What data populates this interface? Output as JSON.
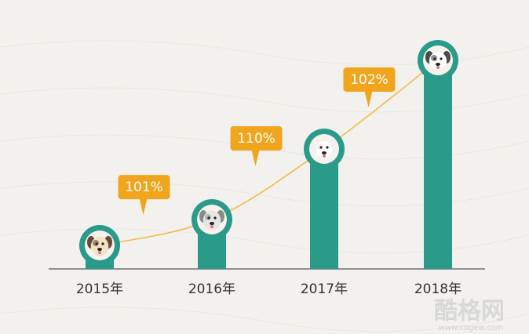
{
  "chart_data": {
    "type": "bar",
    "categories": [
      "2015年",
      "2016年",
      "2017年",
      "2018年"
    ],
    "values": [
      30,
      63,
      153,
      266
    ],
    "ylim": [
      0,
      300
    ],
    "color": "#2a9a8b",
    "annotations": [
      "101%",
      "110%",
      "102%"
    ],
    "line_color": "#f5b94a",
    "callout_color": "#f0a51c"
  },
  "watermark": {
    "name": "酷格网",
    "url": "www.cogew.com"
  }
}
